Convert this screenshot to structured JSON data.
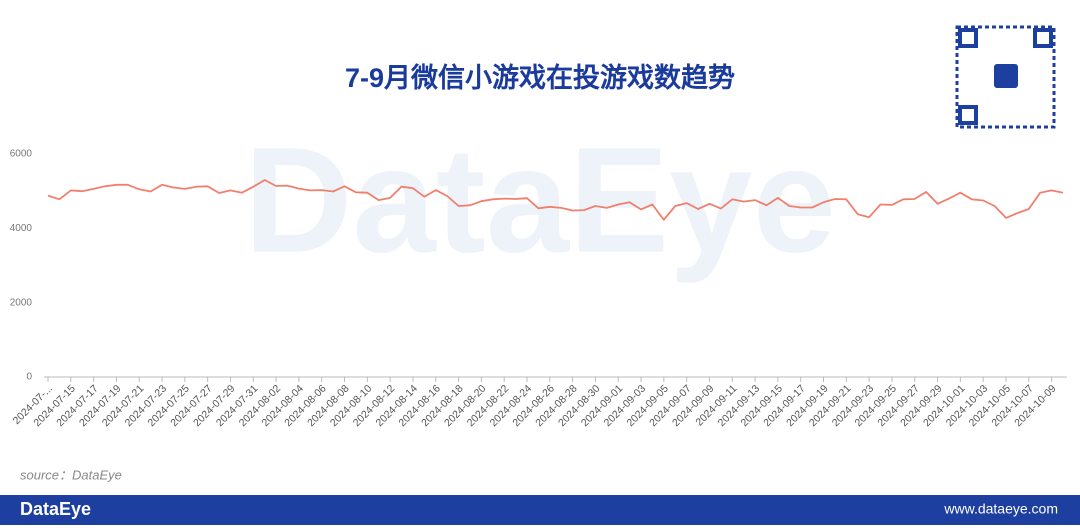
{
  "chart_data": {
    "type": "line",
    "title": "7-9月微信小游戏在投游戏数趋势",
    "source": "source：DataEye",
    "categories": [
      "2024-07-...",
      null,
      "2024-07-15",
      null,
      "2024-07-17",
      null,
      "2024-07-19",
      null,
      "2024-07-21",
      null,
      "2024-07-23",
      null,
      "2024-07-25",
      null,
      "2024-07-27",
      null,
      "2024-07-29",
      null,
      "2024-07-31",
      null,
      "2024-08-02",
      null,
      "2024-08-04",
      null,
      "2024-08-06",
      null,
      "2024-08-08",
      null,
      "2024-08-10",
      null,
      "2024-08-12",
      null,
      "2024-08-14",
      null,
      "2024-08-16",
      null,
      "2024-08-18",
      null,
      "2024-08-20",
      null,
      "2024-08-22",
      null,
      "2024-08-24",
      null,
      "2024-08-26",
      null,
      "2024-08-28",
      null,
      "2024-08-30",
      null,
      "2024-09-01",
      null,
      "2024-09-03",
      null,
      "2024-09-05",
      null,
      "2024-09-07",
      null,
      "2024-09-09",
      null,
      "2024-09-11",
      null,
      "2024-09-13",
      null,
      "2024-09-15",
      null,
      "2024-09-17",
      null,
      "2024-09-19",
      null,
      "2024-09-21",
      null,
      "2024-09-23",
      null,
      "2024-09-25",
      null,
      "2024-09-27",
      null,
      "2024-09-29",
      null,
      "2024-10-01",
      null,
      "2024-10-03",
      null,
      "2024-10-05",
      null,
      "2024-10-07",
      null,
      "2024-10-09",
      null
    ],
    "values": [
      4880,
      4780,
      5020,
      5000,
      5060,
      5130,
      5170,
      5170,
      5050,
      4990,
      5170,
      5100,
      5060,
      5120,
      5130,
      4950,
      5020,
      4960,
      5120,
      5300,
      5140,
      5150,
      5070,
      5020,
      5030,
      4990,
      5130,
      4970,
      4960,
      4760,
      4820,
      5120,
      5080,
      4850,
      5030,
      4870,
      4600,
      4620,
      4730,
      4780,
      4800,
      4790,
      4810,
      4540,
      4580,
      4550,
      4480,
      4490,
      4600,
      4550,
      4640,
      4700,
      4510,
      4640,
      4230,
      4600,
      4680,
      4520,
      4660,
      4530,
      4780,
      4720,
      4760,
      4620,
      4820,
      4600,
      4560,
      4560,
      4700,
      4790,
      4780,
      4380,
      4300,
      4640,
      4630,
      4780,
      4790,
      4980,
      4660,
      4800,
      4960,
      4780,
      4750,
      4600,
      4280,
      4410,
      4520,
      4960,
      5020,
      4960
    ],
    "color": "#f0806e",
    "ylim": [
      0,
      6000
    ],
    "yticks": [
      0,
      2000,
      4000,
      6000
    ],
    "grid": false
  },
  "page": {
    "watermark": "DataEye",
    "footer_brand": "DataEye",
    "footer_url": "www.dataeye.com"
  }
}
